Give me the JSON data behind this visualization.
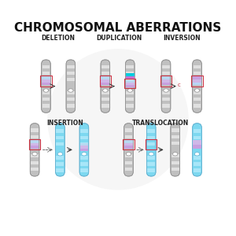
{
  "title": "CHROMOSOMAL ABERRATIONS",
  "title_fontsize": 11,
  "title_fontweight": "bold",
  "bg_color": "#ffffff",
  "labels": {
    "deletion": "DELETION",
    "duplication": "DUPLICATION",
    "inversion": "INVERSION",
    "insertion": "INSERTION",
    "translocation": "TRANSLOCATION"
  },
  "label_fontsize": 5.5,
  "chrom_gray": "#b0b0b0",
  "chrom_light": "#cccccc",
  "chrom_blue": "#7dd8f0",
  "chrom_blue_light": "#a8e6f5",
  "band_purple": "#9b7ec8",
  "band_pink": "#e8a0c8",
  "band_blue_stripe": "#7dd8f0",
  "band_cyan": "#00bcd4",
  "highlight_color": "#cc3344",
  "arrow_color": "#333333",
  "watermark_color": "#e8e8e8"
}
